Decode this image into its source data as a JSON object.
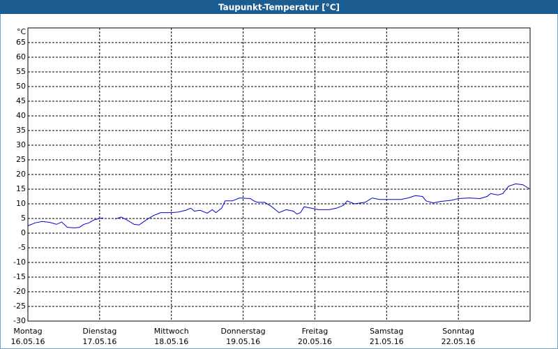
{
  "chart_data": {
    "type": "line",
    "title": "Taupunkt-Temperatur [°C]",
    "y_unit": "°C",
    "xlim": [
      0,
      7
    ],
    "xticks": [
      {
        "value": 0,
        "label": [
          "Montag",
          "16.05.16"
        ]
      },
      {
        "value": 1,
        "label": [
          "Dienstag",
          "17.05.16"
        ]
      },
      {
        "value": 2,
        "label": [
          "Mittwoch",
          "18.05.16"
        ]
      },
      {
        "value": 3,
        "label": [
          "Donnerstag",
          "19.05.16"
        ]
      },
      {
        "value": 4,
        "label": [
          "Freitag",
          "20.05.16"
        ]
      },
      {
        "value": 5,
        "label": [
          "Samstag",
          "21.05.16"
        ]
      },
      {
        "value": 6,
        "label": [
          "Sonntag",
          "22.05.16"
        ]
      }
    ],
    "ylim": [
      -30,
      70
    ],
    "yticks": [
      -30,
      -25,
      -20,
      -15,
      -10,
      -5,
      0,
      5,
      10,
      15,
      20,
      25,
      30,
      35,
      40,
      45,
      50,
      55,
      60,
      65
    ],
    "grid": true,
    "series": [
      {
        "color": "#0000cc",
        "x": [
          0,
          0.1,
          0.2,
          0.3,
          0.4,
          0.47,
          0.55,
          0.65,
          0.72,
          0.78,
          0.85,
          0.92,
          1.0,
          1.05,
          1.1,
          1.22,
          1.3,
          1.38,
          1.48,
          1.55,
          1.65,
          1.75,
          1.85,
          2.0,
          2.1,
          2.2,
          2.27,
          2.32,
          2.4,
          2.5,
          2.57,
          2.62,
          2.7,
          2.75,
          2.85,
          2.95,
          3.1,
          3.15,
          3.2,
          3.3,
          3.4,
          3.5,
          3.6,
          3.7,
          3.75,
          3.8,
          3.85,
          3.95,
          4.05,
          4.2,
          4.3,
          4.4,
          4.45,
          4.5,
          4.55,
          4.7,
          4.8,
          4.9,
          5.0,
          5.2,
          5.3,
          5.4,
          5.5,
          5.55,
          5.65,
          5.75,
          5.9,
          6.0,
          6.15,
          6.3,
          6.4,
          6.45,
          6.55,
          6.62,
          6.7,
          6.8,
          6.9,
          7.0
        ],
        "values": [
          2.5,
          3.5,
          4,
          3.7,
          3,
          3.8,
          2,
          1.8,
          2,
          3,
          3.5,
          4.5,
          5,
          5.2,
          null,
          4.8,
          5.5,
          4.5,
          3,
          2.8,
          4.5,
          6,
          7,
          7,
          7.2,
          7.8,
          8.5,
          7.5,
          7.8,
          6.8,
          8,
          7,
          8.5,
          11,
          11,
          12,
          11.8,
          11,
          10.5,
          10.5,
          9,
          7,
          8,
          7.5,
          6.5,
          7,
          9,
          8.5,
          8,
          8,
          8.5,
          9.5,
          11,
          10.5,
          10,
          10.5,
          12,
          11.5,
          11.5,
          11.5,
          12,
          12.8,
          12.5,
          11,
          10.3,
          10.8,
          11.2,
          11.8,
          12,
          11.8,
          12.5,
          13.5,
          13,
          13.5,
          16,
          16.8,
          16.5,
          15
        ]
      }
    ]
  }
}
